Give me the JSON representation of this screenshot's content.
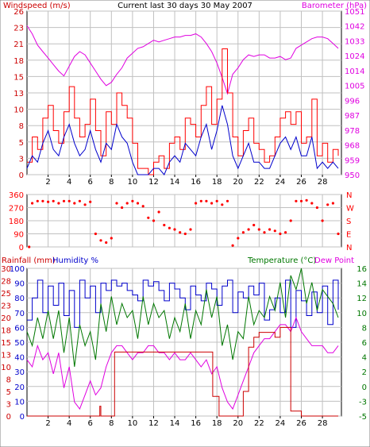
{
  "title": "Current last 30 days 30 May 2007",
  "colors": {
    "windspeed": "#cc0000",
    "gust": "#ff0000",
    "avgwind": "#0000cc",
    "barometer": "#e000e0",
    "direction": "#ff0000",
    "humidity": "#0000cc",
    "temperature": "#007700",
    "dewpoint": "#e000e0",
    "rainfall": "#cc0000",
    "grid": "#c0c0c0",
    "axis": "#000000"
  },
  "chart_data": [
    {
      "type": "line",
      "id": "wind-baro",
      "title": "Current last 30 days 30 May 2007",
      "ylabel_left": "Windspeed (m/s)",
      "ylabel_right": "Barometer (hPa)",
      "x_ticks": [
        "2",
        "4",
        "6",
        "8",
        "10",
        "12",
        "14",
        "16",
        "18",
        "20",
        "22",
        "24",
        "26",
        "28"
      ],
      "xlim": [
        0,
        29.8
      ],
      "ylim_left": [
        0,
        26
      ],
      "ylim_right": [
        950,
        1051
      ],
      "y_ticks_left": [
        "0",
        "3",
        "5",
        "8",
        "10",
        "13",
        "15",
        "18",
        "21",
        "23",
        "26"
      ],
      "y_ticks_right": [
        "950",
        "959",
        "968",
        "978",
        "987",
        "996",
        "1005",
        "1014",
        "1024",
        "1033",
        "1042",
        "1051"
      ],
      "grid": true,
      "series": [
        {
          "name": "Barometer",
          "axis": "right",
          "x": [
            0.0,
            0.5,
            1.0,
            1.5,
            2.0,
            2.5,
            3.0,
            3.5,
            4.0,
            4.5,
            5.0,
            5.5,
            6.0,
            6.5,
            7.0,
            7.5,
            8.0,
            8.5,
            9.0,
            9.5,
            10.0,
            10.5,
            11.0,
            11.5,
            12.0,
            12.5,
            13.0,
            13.5,
            14.0,
            14.5,
            15.0,
            15.5,
            16.0,
            16.5,
            17.0,
            17.5,
            18.0,
            18.5,
            19.0,
            19.5,
            20.0,
            20.5,
            21.0,
            21.5,
            22.0,
            22.5,
            23.0,
            23.5,
            24.0,
            24.5,
            25.0,
            25.5,
            26.0,
            26.5,
            27.0,
            27.5,
            28.0,
            28.5,
            29.0,
            29.5
          ],
          "y": [
            1042,
            1037,
            1030,
            1026,
            1022,
            1018,
            1014,
            1011,
            1017,
            1023,
            1026,
            1024,
            1019,
            1014,
            1009,
            1005,
            1007,
            1012,
            1016,
            1022,
            1025,
            1028,
            1029,
            1031,
            1033,
            1032,
            1033,
            1034,
            1035,
            1035,
            1036,
            1036,
            1037,
            1035,
            1031,
            1026,
            1019,
            1010,
            1000,
            1012,
            1016,
            1021,
            1024,
            1023,
            1024,
            1024,
            1022,
            1022,
            1023,
            1021,
            1022,
            1028,
            1030,
            1032,
            1034,
            1035,
            1035,
            1034,
            1031,
            1028
          ]
        },
        {
          "name": "Windspeed",
          "axis": "left",
          "x": [
            0.0,
            0.5,
            1.0,
            1.5,
            2.0,
            2.5,
            3.0,
            3.5,
            4.0,
            4.5,
            5.0,
            5.5,
            6.0,
            6.5,
            7.0,
            7.5,
            8.0,
            8.5,
            9.0,
            9.5,
            10.0,
            10.5,
            11.0,
            11.5,
            12.0,
            12.5,
            13.0,
            13.5,
            14.0,
            14.5,
            15.0,
            15.5,
            16.0,
            16.5,
            17.0,
            17.5,
            18.0,
            18.5,
            19.0,
            19.5,
            20.0,
            20.5,
            21.0,
            21.5,
            22.0,
            22.5,
            23.0,
            23.5,
            24.0,
            24.5,
            25.0,
            25.5,
            26.0,
            26.5,
            27.0,
            27.5,
            28.0,
            28.5,
            29.0,
            29.5
          ],
          "y": [
            2,
            6,
            4,
            9,
            11,
            7,
            5,
            10,
            14,
            9,
            6,
            8,
            12,
            7,
            3,
            10,
            8,
            13,
            11,
            9,
            5,
            1,
            1,
            0,
            2,
            3,
            1,
            5,
            6,
            4,
            9,
            8,
            6,
            11,
            14,
            8,
            12,
            20,
            13,
            6,
            3,
            7,
            9,
            5,
            4,
            2,
            3,
            6,
            9,
            10,
            8,
            10,
            5,
            6,
            12,
            3,
            5,
            2,
            4,
            3
          ]
        },
        {
          "name": "Average",
          "axis": "left",
          "x": [
            0.0,
            0.5,
            1.0,
            1.5,
            2.0,
            2.5,
            3.0,
            3.5,
            4.0,
            4.5,
            5.0,
            5.5,
            6.0,
            6.5,
            7.0,
            7.5,
            8.0,
            8.5,
            9.0,
            9.5,
            10.0,
            10.5,
            11.0,
            11.5,
            12.0,
            12.5,
            13.0,
            13.5,
            14.0,
            14.5,
            15.0,
            15.5,
            16.0,
            16.5,
            17.0,
            17.5,
            18.0,
            18.5,
            19.0,
            19.5,
            20.0,
            20.5,
            21.0,
            21.5,
            22.0,
            22.5,
            23.0,
            23.5,
            24.0,
            24.5,
            25.0,
            25.5,
            26.0,
            26.5,
            27.0,
            27.5,
            28.0,
            28.5,
            29.0,
            29.5
          ],
          "y": [
            1,
            3,
            2,
            5,
            7,
            4,
            3,
            6,
            8,
            5,
            3,
            4,
            7,
            4,
            2,
            5,
            4,
            8,
            6,
            5,
            2,
            0,
            0,
            0,
            1,
            1,
            0,
            2,
            3,
            2,
            5,
            4,
            3,
            6,
            8,
            4,
            7,
            11,
            8,
            3,
            1,
            3,
            5,
            2,
            2,
            1,
            1,
            3,
            5,
            6,
            4,
            6,
            3,
            3,
            6,
            1,
            2,
            1,
            2,
            1
          ]
        }
      ]
    },
    {
      "type": "scatter",
      "id": "direction",
      "y_ticks_left": [
        "0",
        "90",
        "180",
        "270",
        "360"
      ],
      "y_ticks_right": [
        "N",
        "E",
        "S",
        "W",
        "N"
      ],
      "ylim": [
        0,
        360
      ],
      "grid": true,
      "series": [
        {
          "name": "Direction",
          "x": [
            0.2,
            0.5,
            1.0,
            1.5,
            2.0,
            2.5,
            3.0,
            3.5,
            4.0,
            4.5,
            5.0,
            5.5,
            6.0,
            6.5,
            7.0,
            7.5,
            8.0,
            8.5,
            9.0,
            9.5,
            10.0,
            10.5,
            11.0,
            11.5,
            12.0,
            12.5,
            13.0,
            13.5,
            14.0,
            14.5,
            15.0,
            15.5,
            16.0,
            16.5,
            17.0,
            17.5,
            18.0,
            18.5,
            19.0,
            19.5,
            20.0,
            20.5,
            21.0,
            21.5,
            22.0,
            22.5,
            23.0,
            23.5,
            24.0,
            24.5,
            25.0,
            25.5,
            26.0,
            26.5,
            27.0,
            27.5,
            28.0,
            28.5,
            29.0,
            29.5
          ],
          "y": [
            0,
            300,
            315,
            315,
            310,
            315,
            300,
            315,
            315,
            300,
            315,
            290,
            310,
            90,
            45,
            30,
            60,
            300,
            270,
            300,
            315,
            300,
            280,
            200,
            180,
            240,
            150,
            130,
            120,
            100,
            90,
            120,
            300,
            315,
            315,
            300,
            315,
            290,
            315,
            10,
            60,
            100,
            120,
            150,
            120,
            100,
            120,
            110,
            90,
            100,
            180,
            315,
            315,
            320,
            300,
            270,
            180,
            290,
            300,
            90
          ]
        }
      ]
    },
    {
      "type": "line",
      "id": "rain-humidity-temp",
      "ylabel_left": "Rainfall (mm)  Humidity %",
      "ylabel_right": "Temperature (°C)Dew Point",
      "x_ticks": [
        "2",
        "4",
        "6",
        "8",
        "10",
        "12",
        "14",
        "16",
        "18",
        "20",
        "22",
        "24",
        "26",
        "28"
      ],
      "y_ticks_rain": [
        "0",
        "3",
        "5",
        "8",
        "10",
        "13",
        "15",
        "18",
        "20",
        "23",
        "25",
        "28",
        "30"
      ],
      "y_ticks_humidity": [
        "0",
        "10",
        "20",
        "30",
        "40",
        "50",
        "60",
        "70",
        "80",
        "90",
        "100"
      ],
      "y_ticks_right": [
        "-5",
        "-3",
        "0",
        "2",
        "4",
        "6",
        "8",
        "10",
        "12",
        "14",
        "16"
      ],
      "ylim_rain": [
        0,
        30
      ],
      "ylim_humidity": [
        0,
        100
      ],
      "ylim_temp": [
        -5,
        16
      ],
      "grid": true,
      "series": [
        {
          "name": "Humidity",
          "axis": "humidity",
          "x": [
            0.0,
            0.5,
            1.0,
            1.5,
            2.0,
            2.5,
            3.0,
            3.5,
            4.0,
            4.5,
            5.0,
            5.5,
            6.0,
            6.5,
            7.0,
            7.5,
            8.0,
            8.5,
            9.0,
            9.5,
            10.0,
            10.5,
            11.0,
            11.5,
            12.0,
            12.5,
            13.0,
            13.5,
            14.0,
            14.5,
            15.0,
            15.5,
            16.0,
            16.5,
            17.0,
            17.5,
            18.0,
            18.5,
            19.0,
            19.5,
            20.0,
            20.5,
            21.0,
            21.5,
            22.0,
            22.5,
            23.0,
            23.5,
            24.0,
            24.5,
            25.0,
            25.5,
            26.0,
            26.5,
            27.0,
            27.5,
            28.0,
            28.5,
            29.0,
            29.5
          ],
          "y": [
            65,
            80,
            92,
            70,
            88,
            75,
            90,
            68,
            85,
            60,
            92,
            80,
            88,
            70,
            90,
            85,
            92,
            88,
            90,
            85,
            82,
            78,
            92,
            88,
            91,
            85,
            78,
            90,
            86,
            80,
            72,
            88,
            82,
            78,
            90,
            86,
            75,
            88,
            92,
            70,
            84,
            80,
            88,
            82,
            90,
            65,
            72,
            80,
            70,
            92,
            60,
            85,
            78,
            68,
            84,
            70,
            88,
            62,
            92,
            72
          ]
        },
        {
          "name": "Temperature",
          "axis": "temp",
          "x": [
            0.0,
            0.5,
            1.0,
            1.5,
            2.0,
            2.5,
            3.0,
            3.5,
            4.0,
            4.5,
            5.0,
            5.5,
            6.0,
            6.5,
            7.0,
            7.5,
            8.0,
            8.5,
            9.0,
            9.5,
            10.0,
            10.5,
            11.0,
            11.5,
            12.0,
            12.5,
            13.0,
            13.5,
            14.0,
            14.5,
            15.0,
            15.5,
            16.0,
            16.5,
            17.0,
            17.5,
            18.0,
            18.5,
            19.0,
            19.5,
            20.0,
            20.5,
            21.0,
            21.5,
            22.0,
            22.5,
            23.0,
            23.5,
            24.0,
            24.5,
            25.0,
            25.5,
            26.0,
            26.5,
            27.0,
            27.5,
            28.0,
            28.5,
            29.0,
            29.5
          ],
          "y": [
            7,
            5,
            9,
            6,
            10,
            6,
            10,
            4,
            9,
            2,
            8,
            5,
            7,
            3,
            11,
            7,
            12,
            8,
            11,
            9,
            10,
            6,
            12,
            8,
            11,
            9,
            10,
            6,
            9,
            7,
            11,
            6,
            10,
            8,
            13,
            9,
            12,
            5,
            8,
            3,
            7,
            6,
            12,
            8,
            10,
            9,
            12,
            10,
            14,
            9,
            15,
            13,
            16,
            11,
            14,
            10,
            13,
            12,
            11,
            9
          ]
        },
        {
          "name": "Dew Point",
          "axis": "temp",
          "x": [
            0.0,
            0.5,
            1.0,
            1.5,
            2.0,
            2.5,
            3.0,
            3.5,
            4.0,
            4.5,
            5.0,
            5.5,
            6.0,
            6.5,
            7.0,
            7.5,
            8.0,
            8.5,
            9.0,
            9.5,
            10.0,
            10.5,
            11.0,
            11.5,
            12.0,
            12.5,
            13.0,
            13.5,
            14.0,
            14.5,
            15.0,
            15.5,
            16.0,
            16.5,
            17.0,
            17.5,
            18.0,
            18.5,
            19.0,
            19.5,
            20.0,
            20.5,
            21.0,
            21.5,
            22.0,
            22.5,
            23.0,
            23.5,
            24.0,
            24.5,
            25.0,
            25.5,
            26.0,
            26.5,
            27.0,
            27.5,
            28.0,
            28.5,
            29.0,
            29.5
          ],
          "y": [
            3,
            2,
            5,
            3,
            4,
            1,
            4,
            -1,
            2,
            -3,
            -4,
            -2,
            0,
            -2,
            -1,
            2,
            4,
            5,
            5,
            4,
            3,
            4,
            4,
            5,
            5,
            4,
            4,
            3,
            4,
            3,
            3,
            4,
            3,
            2,
            3,
            1,
            2,
            -1,
            -3,
            -4,
            -2,
            0,
            2,
            4,
            5,
            6,
            6,
            7,
            8,
            8,
            7,
            9,
            7,
            6,
            5,
            5,
            5,
            4,
            4,
            5
          ]
        },
        {
          "name": "Rainfall",
          "axis": "rain",
          "x": [
            0.0,
            1.0,
            2.0,
            3.0,
            4.0,
            5.0,
            6.0,
            6.5,
            6.9,
            7.0,
            7.5,
            8.0,
            8.3,
            8.5,
            9.0,
            10.0,
            11.0,
            12.0,
            13.0,
            14.0,
            15.0,
            16.0,
            17.0,
            17.5,
            17.6,
            18.0,
            18.2,
            18.5,
            19.0,
            20.0,
            20.5,
            21.0,
            21.5,
            22.0,
            22.5,
            23.0,
            23.5,
            24.0,
            24.5,
            25.0,
            26.0,
            27.0,
            28.0,
            29.0,
            29.5
          ],
          "y": [
            0,
            0,
            0,
            0,
            0,
            0,
            0,
            0,
            2,
            0,
            0,
            0,
            13,
            13,
            13,
            13,
            13,
            13,
            13,
            13,
            13,
            13,
            13,
            13,
            4,
            4,
            0,
            0,
            0,
            0,
            5,
            14,
            16,
            17,
            17,
            17,
            16,
            18,
            18,
            1,
            0,
            0,
            0,
            0,
            0
          ]
        }
      ]
    }
  ]
}
